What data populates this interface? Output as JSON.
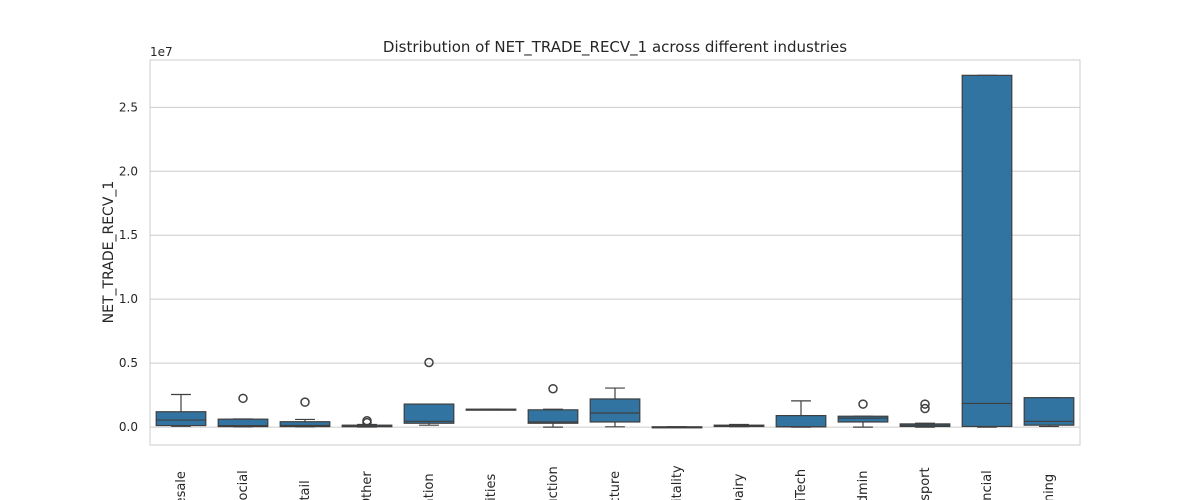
{
  "chart_data": {
    "type": "box",
    "title": "Distribution of NET_TRADE_RECV_1 across different industries",
    "xlabel": "",
    "ylabel": "NET_TRADE_RECV_1",
    "scale_label": "1e7",
    "ylim": [
      -1400000,
      28700000
    ],
    "yticks": [
      0,
      5000000,
      10000000,
      15000000,
      20000000,
      25000000
    ],
    "ytick_labels": [
      "0.0",
      "0.5",
      "1.0",
      "1.5",
      "2.0",
      "2.5"
    ],
    "grid": true,
    "box_color": "#3274a1",
    "categories": [
      "olesale",
      "nSocial",
      "Retail",
      "- Other",
      "ication",
      "Jtilities",
      "truction",
      "facture",
      "spitality",
      "- Dairy",
      "SciTech",
      "tAdmin",
      "ansport",
      "nancial",
      "Mining"
    ],
    "boxes": [
      {
        "whislo": 60000,
        "q1": 120000,
        "med": 550000,
        "q3": 1200000,
        "whishi": 2550000,
        "fliers": []
      },
      {
        "whislo": 20000,
        "q1": 40000,
        "med": 120000,
        "q3": 620000,
        "whishi": 630000,
        "fliers": [
          2250000
        ]
      },
      {
        "whislo": 20000,
        "q1": 40000,
        "med": 130000,
        "q3": 420000,
        "whishi": 600000,
        "fliers": [
          1950000
        ]
      },
      {
        "whislo": 10000,
        "q1": 30000,
        "med": 60000,
        "q3": 150000,
        "whishi": 200000,
        "fliers": [
          350000,
          500000
        ]
      },
      {
        "whislo": 150000,
        "q1": 300000,
        "med": 450000,
        "q3": 1800000,
        "whishi": 1800000,
        "fliers": [
          5050000
        ]
      },
      {
        "whislo": 1350000,
        "q1": 1350000,
        "med": 1380000,
        "q3": 1400000,
        "whishi": 1400000,
        "fliers": []
      },
      {
        "whislo": 0,
        "q1": 300000,
        "med": 400000,
        "q3": 1350000,
        "whishi": 1400000,
        "fliers": [
          3000000
        ]
      },
      {
        "whislo": 20000,
        "q1": 400000,
        "med": 1100000,
        "q3": 2200000,
        "whishi": 3050000,
        "fliers": []
      },
      {
        "whislo": 0,
        "q1": 0,
        "med": 10000,
        "q3": 20000,
        "whishi": 30000,
        "fliers": []
      },
      {
        "whislo": 30000,
        "q1": 50000,
        "med": 100000,
        "q3": 150000,
        "whishi": 200000,
        "fliers": []
      },
      {
        "whislo": 0,
        "q1": 20000,
        "med": 30000,
        "q3": 900000,
        "whishi": 2050000,
        "fliers": []
      },
      {
        "whislo": 0,
        "q1": 400000,
        "med": 700000,
        "q3": 850000,
        "whishi": 850000,
        "fliers": [
          1800000
        ]
      },
      {
        "whislo": 0,
        "q1": 50000,
        "med": 150000,
        "q3": 250000,
        "whishi": 300000,
        "fliers": [
          1450000,
          1800000
        ]
      },
      {
        "whislo": 0,
        "q1": 50000,
        "med": 1850000,
        "q3": 27500000,
        "whishi": 27500000,
        "fliers": []
      },
      {
        "whislo": 50000,
        "q1": 150000,
        "med": 450000,
        "q3": 2300000,
        "whishi": 2300000,
        "fliers": []
      }
    ]
  }
}
